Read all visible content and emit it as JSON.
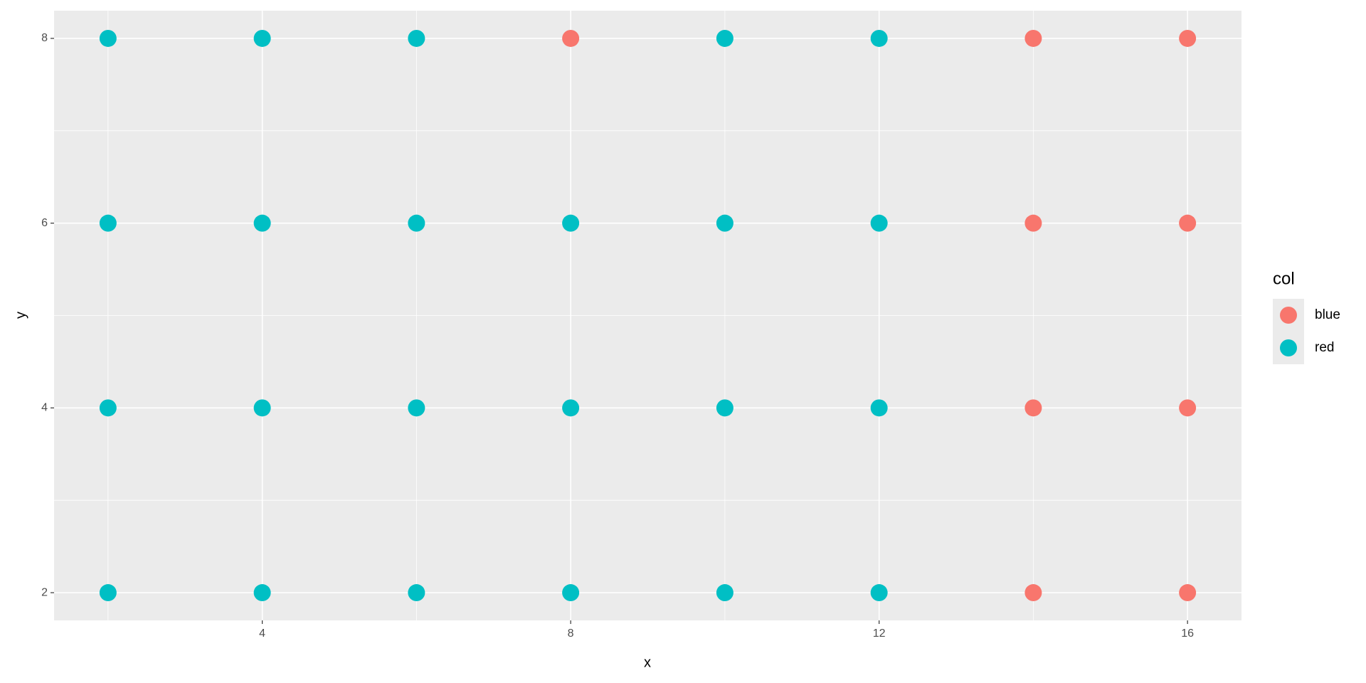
{
  "chart_data": {
    "type": "scatter",
    "x_label": "x",
    "y_label": "y",
    "xlim": [
      1.3,
      16.7
    ],
    "ylim": [
      1.7,
      8.3
    ],
    "xticks": [
      4,
      8,
      12,
      16
    ],
    "yticks": [
      2,
      4,
      6,
      8
    ],
    "xminorticks": [
      2,
      6,
      10,
      14
    ],
    "yminorticks": [
      3,
      5,
      7
    ],
    "grid": true,
    "legend_title": "col",
    "legend_position": "right",
    "series": [
      {
        "name": "blue",
        "color": "#F8766D",
        "x": [
          8,
          14,
          16,
          14,
          16,
          14,
          16,
          14,
          16
        ],
        "values": [
          8,
          8,
          8,
          6,
          6,
          4,
          4,
          2,
          2
        ]
      },
      {
        "name": "red",
        "color": "#00BFC4",
        "x": [
          2,
          4,
          6,
          10,
          12,
          2,
          4,
          6,
          8,
          10,
          12,
          2,
          4,
          6,
          8,
          10,
          12,
          2,
          4,
          6,
          8,
          10,
          12
        ],
        "values": [
          8,
          8,
          8,
          8,
          8,
          6,
          6,
          6,
          6,
          6,
          6,
          4,
          4,
          4,
          4,
          4,
          4,
          2,
          2,
          2,
          2,
          2,
          2
        ]
      }
    ]
  }
}
